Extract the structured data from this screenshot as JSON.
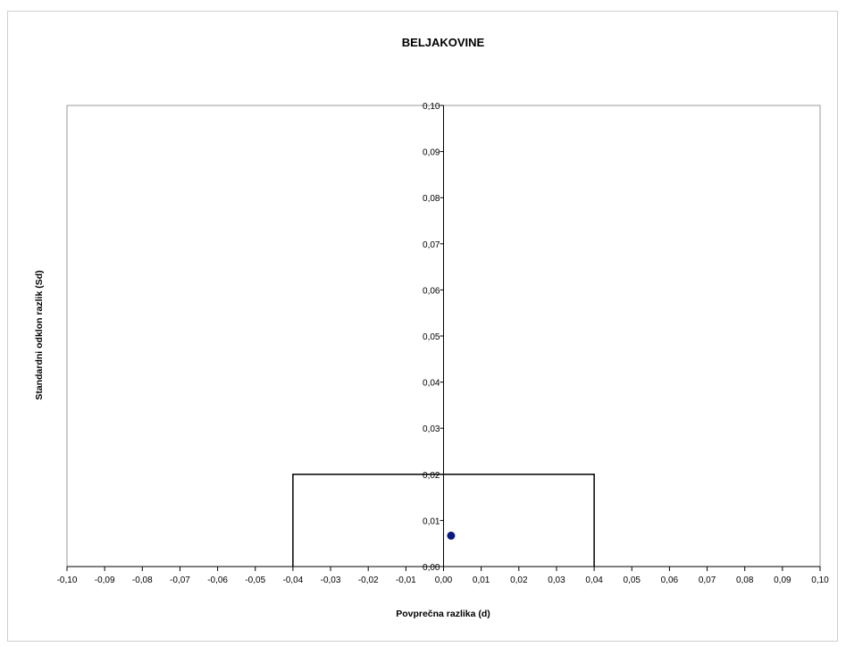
{
  "chart_data": {
    "type": "scatter",
    "title": "BELJAKOVINE",
    "xlabel": "Povprečna razlika (d)",
    "ylabel": "Standardni odklon razlik (Sd)",
    "xlim": [
      -0.1,
      0.1
    ],
    "ylim": [
      0.0,
      0.1
    ],
    "x_ticks": [
      "-0,10",
      "-0,09",
      "-0,08",
      "-0,07",
      "-0,06",
      "-0,05",
      "-0,04",
      "-0,03",
      "-0,02",
      "-0,01",
      "0,00",
      "0,01",
      "0,02",
      "0,03",
      "0,04",
      "0,05",
      "0,06",
      "0,07",
      "0,08",
      "0,09",
      "0,10"
    ],
    "y_ticks": [
      "0,00",
      "0,01",
      "0,02",
      "0,03",
      "0,04",
      "0,05",
      "0,06",
      "0,07",
      "0,08",
      "0,09",
      "0,10"
    ],
    "grid": false,
    "legend": "none",
    "series": [
      {
        "points": [
          {
            "x": 0.002,
            "y": 0.0067
          }
        ],
        "color": "#0a1a80"
      }
    ],
    "reference_region": {
      "x": [
        -0.04,
        0.04
      ],
      "y": [
        0.0,
        0.02
      ],
      "color": "#000000"
    }
  }
}
